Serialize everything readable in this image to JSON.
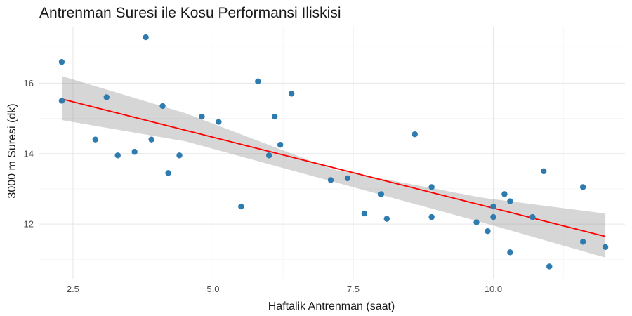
{
  "chart_data": {
    "type": "scatter",
    "title": "Antrenman Suresi ile Kosu Performansi Iliskisi",
    "xlabel": "Haftalik Antrenman (saat)",
    "ylabel": "3000 m Suresi (dk)",
    "xlim": [
      1.9,
      12.35
    ],
    "ylim": [
      10.45,
      17.6
    ],
    "x_ticks": [
      2.5,
      5.0,
      7.5,
      10.0
    ],
    "x_tick_labels": [
      "2.5",
      "5.0",
      "7.5",
      "10.0"
    ],
    "y_ticks": [
      12,
      14,
      16
    ],
    "y_tick_labels": [
      "12",
      "14",
      "16"
    ],
    "grid": true,
    "series": [
      {
        "type": "scatter",
        "color": "#2e7bb0",
        "points": [
          {
            "x": 2.3,
            "y": 16.6
          },
          {
            "x": 2.3,
            "y": 15.5
          },
          {
            "x": 2.9,
            "y": 14.4
          },
          {
            "x": 3.1,
            "y": 15.6
          },
          {
            "x": 3.3,
            "y": 13.95
          },
          {
            "x": 3.6,
            "y": 14.05
          },
          {
            "x": 3.8,
            "y": 17.3
          },
          {
            "x": 3.9,
            "y": 14.4
          },
          {
            "x": 4.1,
            "y": 15.35
          },
          {
            "x": 4.2,
            "y": 13.45
          },
          {
            "x": 4.4,
            "y": 13.95
          },
          {
            "x": 4.8,
            "y": 15.05
          },
          {
            "x": 5.1,
            "y": 14.9
          },
          {
            "x": 5.5,
            "y": 12.5
          },
          {
            "x": 5.8,
            "y": 16.05
          },
          {
            "x": 6.0,
            "y": 13.95
          },
          {
            "x": 6.1,
            "y": 15.05
          },
          {
            "x": 6.2,
            "y": 14.25
          },
          {
            "x": 6.4,
            "y": 15.7
          },
          {
            "x": 7.1,
            "y": 13.25
          },
          {
            "x": 7.4,
            "y": 13.3
          },
          {
            "x": 7.7,
            "y": 12.3
          },
          {
            "x": 8.0,
            "y": 12.85
          },
          {
            "x": 8.1,
            "y": 12.15
          },
          {
            "x": 8.6,
            "y": 14.55
          },
          {
            "x": 8.9,
            "y": 13.05
          },
          {
            "x": 8.9,
            "y": 12.2
          },
          {
            "x": 9.7,
            "y": 12.05
          },
          {
            "x": 9.9,
            "y": 11.8
          },
          {
            "x": 10.0,
            "y": 12.5
          },
          {
            "x": 10.0,
            "y": 12.2
          },
          {
            "x": 10.2,
            "y": 12.85
          },
          {
            "x": 10.3,
            "y": 12.65
          },
          {
            "x": 10.3,
            "y": 11.2
          },
          {
            "x": 10.7,
            "y": 12.2
          },
          {
            "x": 10.9,
            "y": 13.5
          },
          {
            "x": 11.0,
            "y": 10.8
          },
          {
            "x": 11.6,
            "y": 13.05
          },
          {
            "x": 11.6,
            "y": 11.5
          },
          {
            "x": 12.0,
            "y": 11.35
          }
        ]
      },
      {
        "type": "line",
        "color": "#ff0000",
        "fit": "linear",
        "points": [
          {
            "x": 2.3,
            "y": 15.55
          },
          {
            "x": 12.0,
            "y": 11.65
          }
        ],
        "confidence_band": {
          "color": "#999999",
          "x": [
            2.3,
            4.5,
            7.15,
            9.8,
            12.0
          ],
          "lower": [
            14.95,
            14.35,
            13.2,
            12.05,
            11.05
          ],
          "upper": [
            16.2,
            15.15,
            13.55,
            12.75,
            12.3
          ]
        }
      }
    ]
  }
}
